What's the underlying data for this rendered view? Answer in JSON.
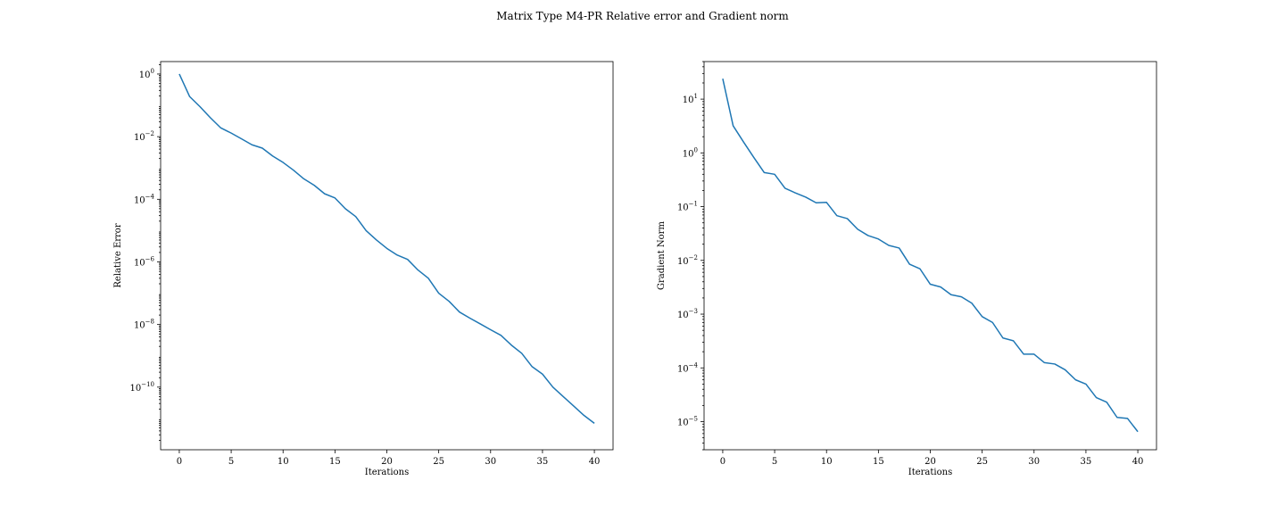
{
  "figure": {
    "title": "Matrix Type  M4-PR Relative error and Gradient norm"
  },
  "chart_data": [
    {
      "type": "line",
      "title": "",
      "xlabel": "Iterations",
      "ylabel": "Relative Error",
      "yscale": "log",
      "xlim": [
        -1.8,
        41.8
      ],
      "ylim": [
        1e-12,
        2.5
      ],
      "grid": false,
      "x_ticks": [
        "0",
        "5",
        "10",
        "15",
        "20",
        "25",
        "30",
        "35",
        "40"
      ],
      "y_ticks": [
        {
          "value": 1,
          "base": "10",
          "exp": "0"
        },
        {
          "value": 0.01,
          "base": "10",
          "exp": "−2"
        },
        {
          "value": 0.0001,
          "base": "10",
          "exp": "−4"
        },
        {
          "value": 1e-06,
          "base": "10",
          "exp": "−6"
        },
        {
          "value": 1e-08,
          "base": "10",
          "exp": "−8"
        },
        {
          "value": 1e-10,
          "base": "10",
          "exp": "−10"
        }
      ],
      "series": [
        {
          "color": "#1f77b4",
          "x": [
            0,
            1,
            2,
            3,
            4,
            5,
            6,
            7,
            8,
            9,
            10,
            11,
            12,
            13,
            14,
            15,
            16,
            17,
            18,
            19,
            20,
            21,
            22,
            23,
            24,
            25,
            26,
            27,
            28,
            29,
            30,
            31,
            32,
            33,
            34,
            35,
            36,
            37,
            38,
            39,
            40
          ],
          "y": [
            1.0,
            0.19,
            0.09,
            0.04,
            0.019,
            0.013,
            0.0085,
            0.0055,
            0.0043,
            0.0024,
            0.0015,
            0.00085,
            0.00045,
            0.00028,
            0.00015,
            0.00011,
            5e-05,
            2.8e-05,
            1e-05,
            5e-06,
            2.7e-06,
            1.65e-06,
            1.2e-06,
            5.5e-07,
            3e-07,
            1e-07,
            5.5e-08,
            2.5e-08,
            1.6e-08,
            1.05e-08,
            6.8e-09,
            4.5e-09,
            2.2e-09,
            1.2e-09,
            4.5e-10,
            2.6e-10,
            1e-10,
            5e-11,
            2.5e-11,
            1.25e-11,
            7e-12
          ]
        }
      ]
    },
    {
      "type": "line",
      "title": "",
      "xlabel": "Iterations",
      "ylabel": "Gradient Norm",
      "yscale": "log",
      "xlim": [
        -1.8,
        41.8
      ],
      "ylim": [
        3e-06,
        50
      ],
      "grid": false,
      "x_ticks": [
        "0",
        "5",
        "10",
        "15",
        "20",
        "25",
        "30",
        "35",
        "40"
      ],
      "y_ticks": [
        {
          "value": 10,
          "base": "10",
          "exp": "1"
        },
        {
          "value": 1,
          "base": "10",
          "exp": "0"
        },
        {
          "value": 0.1,
          "base": "10",
          "exp": "−1"
        },
        {
          "value": 0.01,
          "base": "10",
          "exp": "−2"
        },
        {
          "value": 0.001,
          "base": "10",
          "exp": "−3"
        },
        {
          "value": 0.0001,
          "base": "10",
          "exp": "−4"
        },
        {
          "value": 1e-05,
          "base": "10",
          "exp": "−5"
        }
      ],
      "series": [
        {
          "color": "#1f77b4",
          "x": [
            0,
            1,
            2,
            3,
            4,
            5,
            6,
            7,
            8,
            9,
            10,
            11,
            12,
            13,
            14,
            15,
            16,
            17,
            18,
            19,
            20,
            21,
            22,
            23,
            24,
            25,
            26,
            27,
            28,
            29,
            30,
            31,
            32,
            33,
            34,
            35,
            36,
            37,
            38,
            39,
            40
          ],
          "y": [
            24,
            3.2,
            1.6,
            0.82,
            0.43,
            0.4,
            0.22,
            0.18,
            0.15,
            0.118,
            0.12,
            0.068,
            0.06,
            0.038,
            0.029,
            0.025,
            0.019,
            0.017,
            0.0085,
            0.007,
            0.0036,
            0.0032,
            0.0023,
            0.0021,
            0.0016,
            0.0009,
            0.0007,
            0.00036,
            0.00032,
            0.00018,
            0.00018,
            0.000125,
            0.000118,
            9.2e-05,
            6e-05,
            5e-05,
            2.8e-05,
            2.3e-05,
            1.2e-05,
            1.15e-05,
            6.5e-06
          ]
        }
      ]
    }
  ]
}
